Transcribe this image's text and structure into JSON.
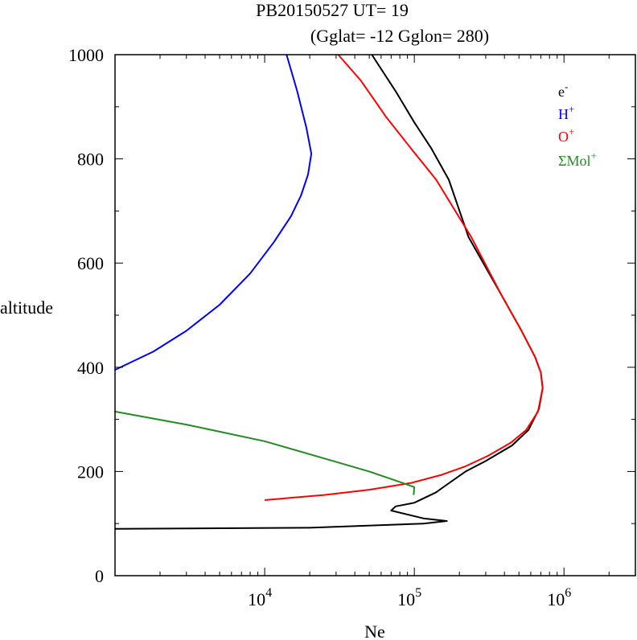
{
  "chart_data": {
    "type": "line",
    "title": "PB20150527   UT=  19",
    "subtitle": "(Gglat= -12   Gglon=  280)",
    "xlabel": "Ne",
    "ylabel": "altitude",
    "x_scale": "log",
    "xlim": [
      1000,
      3000000
    ],
    "ylim": [
      0,
      1000
    ],
    "x_ticks": [
      {
        "value": 10000,
        "base": "10",
        "exp": "4"
      },
      {
        "value": 100000,
        "base": "10",
        "exp": "5"
      },
      {
        "value": 1000000,
        "base": "10",
        "exp": "6"
      }
    ],
    "y_ticks": [
      {
        "value": 0,
        "label": "0"
      },
      {
        "value": 200,
        "label": "200"
      },
      {
        "value": 400,
        "label": "400"
      },
      {
        "value": 600,
        "label": "600"
      },
      {
        "value": 800,
        "label": "800"
      },
      {
        "value": 1000,
        "label": "1000"
      }
    ],
    "grid": false,
    "legend_position": "top-right",
    "series": [
      {
        "base": "e",
        "sup": "-",
        "color": "#000000",
        "points": [
          [
            1000,
            90
          ],
          [
            20000,
            92
          ],
          [
            115000,
            100
          ],
          [
            165000,
            105
          ],
          [
            115000,
            110
          ],
          [
            70000,
            125
          ],
          [
            75000,
            133
          ],
          [
            100000,
            140
          ],
          [
            140000,
            160
          ],
          [
            160000,
            172
          ],
          [
            220000,
            200
          ],
          [
            300000,
            220
          ],
          [
            450000,
            250
          ],
          [
            580000,
            280
          ],
          [
            680000,
            320
          ],
          [
            720000,
            360
          ],
          [
            700000,
            390
          ],
          [
            640000,
            420
          ],
          [
            520000,
            470
          ],
          [
            380000,
            540
          ],
          [
            230000,
            650
          ],
          [
            170000,
            760
          ],
          [
            130000,
            820
          ],
          [
            100000,
            870
          ],
          [
            75000,
            930
          ],
          [
            52000,
            1000
          ]
        ]
      },
      {
        "base": "H",
        "sup": "+",
        "color": "#0000ff",
        "points": [
          [
            1000,
            395
          ],
          [
            1800,
            430
          ],
          [
            3000,
            470
          ],
          [
            5000,
            520
          ],
          [
            8000,
            580
          ],
          [
            11500,
            640
          ],
          [
            15000,
            690
          ],
          [
            17500,
            730
          ],
          [
            19500,
            770
          ],
          [
            20500,
            810
          ],
          [
            19000,
            860
          ],
          [
            16500,
            930
          ],
          [
            14000,
            1000
          ]
        ]
      },
      {
        "base": "O",
        "sup": "+",
        "color": "#ff0000",
        "points": [
          [
            10000,
            145
          ],
          [
            25000,
            155
          ],
          [
            50000,
            165
          ],
          [
            95000,
            178
          ],
          [
            150000,
            193
          ],
          [
            220000,
            210
          ],
          [
            310000,
            230
          ],
          [
            440000,
            255
          ],
          [
            560000,
            280
          ],
          [
            670000,
            315
          ],
          [
            720000,
            360
          ],
          [
            700000,
            390
          ],
          [
            640000,
            420
          ],
          [
            520000,
            470
          ],
          [
            380000,
            540
          ],
          [
            240000,
            650
          ],
          [
            140000,
            760
          ],
          [
            95000,
            820
          ],
          [
            65000,
            880
          ],
          [
            44000,
            950
          ],
          [
            31000,
            1000
          ]
        ]
      },
      {
        "base": "ΣMol",
        "sup": "+",
        "color": "#228b22",
        "points": [
          [
            1000,
            315
          ],
          [
            3000,
            290
          ],
          [
            10000,
            258
          ],
          [
            25000,
            225
          ],
          [
            50000,
            200
          ],
          [
            80000,
            180
          ],
          [
            100000,
            170
          ],
          [
            99000,
            155
          ]
        ]
      }
    ]
  }
}
